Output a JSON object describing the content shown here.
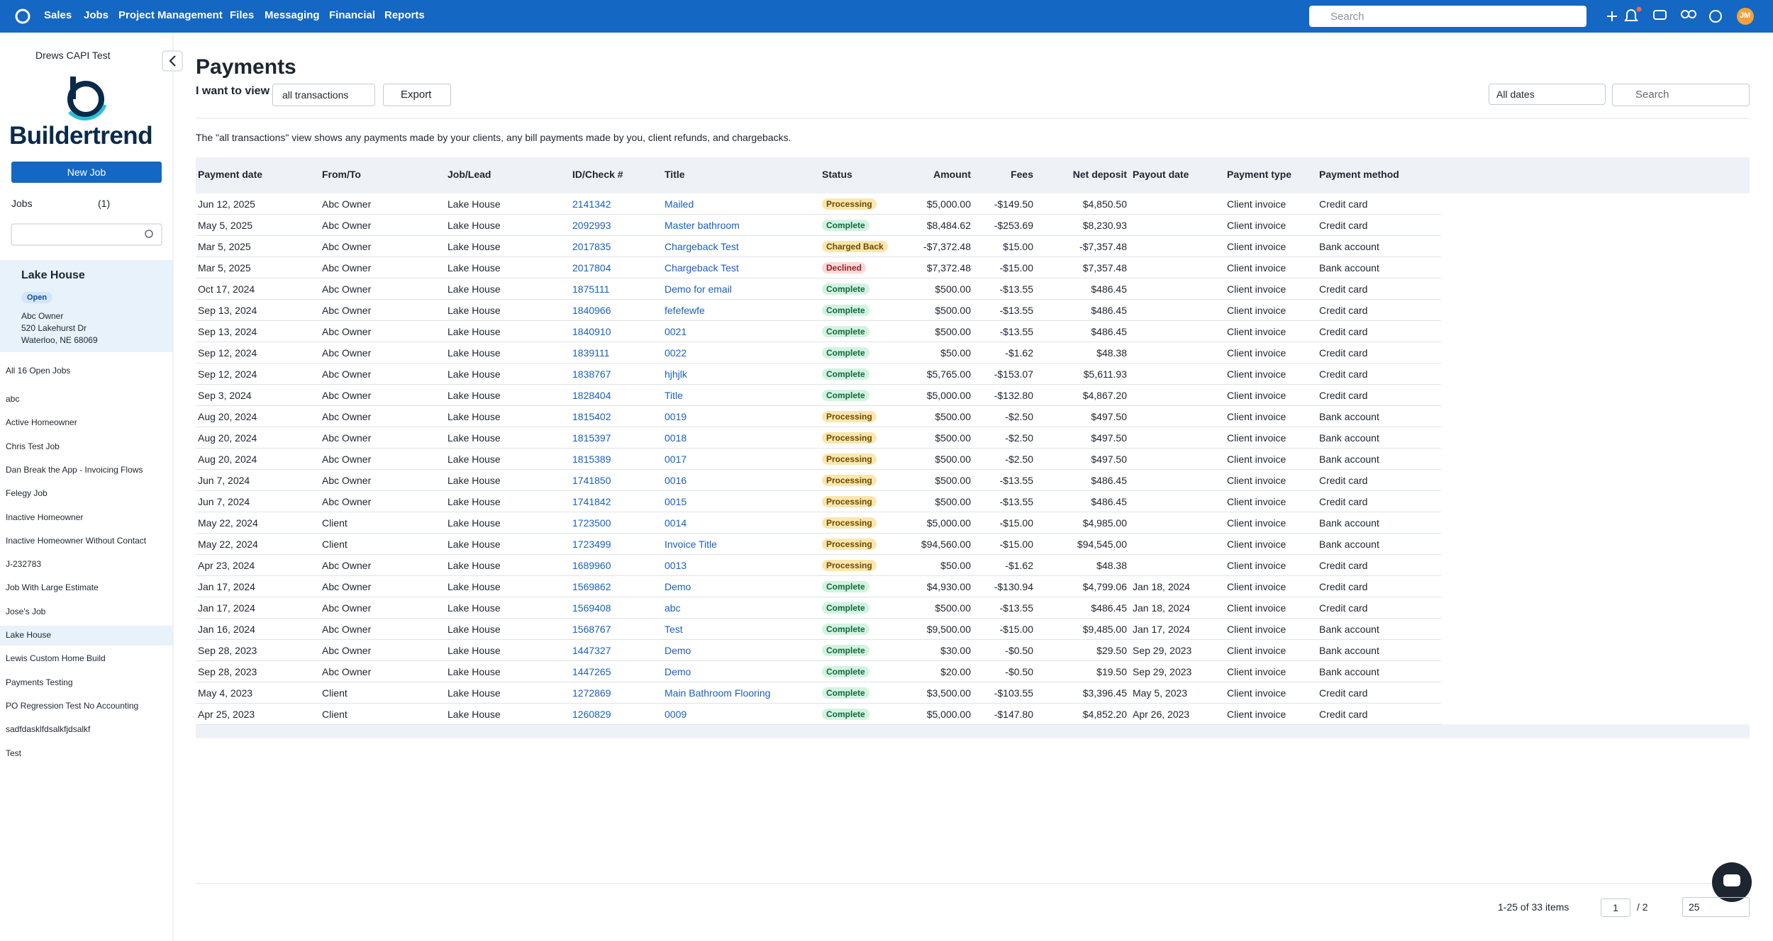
{
  "nav": {
    "items": [
      "Sales",
      "Jobs",
      "Project Management",
      "Files",
      "Messaging",
      "Financial",
      "Reports"
    ],
    "search": "Search",
    "avatar": "JM"
  },
  "sidebar": {
    "account": "Drews CAPI Test",
    "brand": "Buildertrend",
    "new_job": "New Job",
    "jobs_filter": "Jobs",
    "filter_count": "(1)",
    "selected_job": {
      "name": "Lake House",
      "status": "Open",
      "owner": "Abc Owner",
      "street": "520 Lakehurst Dr",
      "city": "Waterloo, NE 68069"
    },
    "all_open": "All 16 Open Jobs",
    "jobs": [
      "abc",
      "Active Homeowner",
      "Chris Test Job",
      "Dan Break the App - Invoicing Flows",
      "Felegy Job",
      "Inactive Homeowner",
      "Inactive Homeowner Without Contact",
      "J-232783",
      "Job With Large Estimate",
      "Jose's Job",
      "Lake House",
      "Lewis Custom Home Build",
      "Payments Testing",
      "PO Regression Test No Accounting",
      "sadfdasklfdsalkfjdsalkf",
      "Test"
    ]
  },
  "page": {
    "title": "Payments",
    "view_label": "I want to view",
    "view": "all transactions",
    "export": "Export",
    "date_filter": "All dates",
    "search": "Search",
    "description": "The \"all transactions\" view shows any payments made by your clients, any bill payments made by you, client refunds, and chargebacks."
  },
  "table": {
    "columns": [
      "Payment date",
      "From/To",
      "Job/Lead",
      "ID/Check #",
      "Title",
      "Status",
      "Amount",
      "Fees",
      "Net deposit",
      "Payout date",
      "Payment type",
      "Payment method"
    ],
    "status_styles": {
      "Processing": [
        "#fbe6ae",
        "#6b4a00"
      ],
      "Complete": [
        "#d3f3e2",
        "#14663a"
      ],
      "Charged Back": [
        "#fbe6ae",
        "#6b4a00"
      ],
      "Declined": [
        "#fbd9d9",
        "#9b1c1c"
      ]
    },
    "rows": [
      [
        "Jun 12, 2025",
        "Abc Owner",
        "Lake House",
        "2141342",
        "Mailed",
        "Processing",
        "$5,000.00",
        "-$149.50",
        "$4,850.50",
        null,
        "Client invoice",
        "Credit card"
      ],
      [
        "May 5, 2025",
        "Abc Owner",
        "Lake House",
        "2092993",
        "Master bathroom",
        "Complete",
        "$8,484.62",
        "-$253.69",
        "$8,230.93",
        null,
        "Client invoice",
        "Credit card"
      ],
      [
        "Mar 5, 2025",
        "Abc Owner",
        "Lake House",
        "2017835",
        "Chargeback Test",
        "Charged Back",
        "-$7,372.48",
        "$15.00",
        "-$7,357.48",
        null,
        "Client invoice",
        "Bank account"
      ],
      [
        "Mar 5, 2025",
        "Abc Owner",
        "Lake House",
        "2017804",
        "Chargeback Test",
        "Declined",
        "$7,372.48",
        "-$15.00",
        "$7,357.48",
        null,
        "Client invoice",
        "Bank account"
      ],
      [
        "Oct 17, 2024",
        "Abc Owner",
        "Lake House",
        "1875111",
        "Demo for email",
        "Complete",
        "$500.00",
        "-$13.55",
        "$486.45",
        null,
        "Client invoice",
        "Credit card"
      ],
      [
        "Sep 13, 2024",
        "Abc Owner",
        "Lake House",
        "1840966",
        "fefefewfe",
        "Complete",
        "$500.00",
        "-$13.55",
        "$486.45",
        null,
        "Client invoice",
        "Credit card"
      ],
      [
        "Sep 13, 2024",
        "Abc Owner",
        "Lake House",
        "1840910",
        "0021",
        "Complete",
        "$500.00",
        "-$13.55",
        "$486.45",
        null,
        "Client invoice",
        "Credit card"
      ],
      [
        "Sep 12, 2024",
        "Abc Owner",
        "Lake House",
        "1839111",
        "0022",
        "Complete",
        "$50.00",
        "-$1.62",
        "$48.38",
        null,
        "Client invoice",
        "Credit card"
      ],
      [
        "Sep 12, 2024",
        "Abc Owner",
        "Lake House",
        "1838767",
        "hjhjlk",
        "Complete",
        "$5,765.00",
        "-$153.07",
        "$5,611.93",
        null,
        "Client invoice",
        "Credit card"
      ],
      [
        "Sep 3, 2024",
        "Abc Owner",
        "Lake House",
        "1828404",
        "Title",
        "Complete",
        "$5,000.00",
        "-$132.80",
        "$4,867.20",
        null,
        "Client invoice",
        "Credit card"
      ],
      [
        "Aug 20, 2024",
        "Abc Owner",
        "Lake House",
        "1815402",
        "0019",
        "Processing",
        "$500.00",
        "-$2.50",
        "$497.50",
        null,
        "Client invoice",
        "Bank account"
      ],
      [
        "Aug 20, 2024",
        "Abc Owner",
        "Lake House",
        "1815397",
        "0018",
        "Processing",
        "$500.00",
        "-$2.50",
        "$497.50",
        null,
        "Client invoice",
        "Bank account"
      ],
      [
        "Aug 20, 2024",
        "Abc Owner",
        "Lake House",
        "1815389",
        "0017",
        "Processing",
        "$500.00",
        "-$2.50",
        "$497.50",
        null,
        "Client invoice",
        "Bank account"
      ],
      [
        "Jun 7, 2024",
        "Abc Owner",
        "Lake House",
        "1741850",
        "0016",
        "Processing",
        "$500.00",
        "-$13.55",
        "$486.45",
        null,
        "Client invoice",
        "Credit card"
      ],
      [
        "Jun 7, 2024",
        "Abc Owner",
        "Lake House",
        "1741842",
        "0015",
        "Processing",
        "$500.00",
        "-$13.55",
        "$486.45",
        null,
        "Client invoice",
        "Credit card"
      ],
      [
        "May 22, 2024",
        "Client",
        "Lake House",
        "1723500",
        "0014",
        "Processing",
        "$5,000.00",
        "-$15.00",
        "$4,985.00",
        null,
        "Client invoice",
        "Bank account"
      ],
      [
        "May 22, 2024",
        "Client",
        "Lake House",
        "1723499",
        "Invoice Title",
        "Processing",
        "$94,560.00",
        "-$15.00",
        "$94,545.00",
        null,
        "Client invoice",
        "Bank account"
      ],
      [
        "Apr 23, 2024",
        "Abc Owner",
        "Lake House",
        "1689960",
        "0013",
        "Processing",
        "$50.00",
        "-$1.62",
        "$48.38",
        null,
        "Client invoice",
        "Credit card"
      ],
      [
        "Jan 17, 2024",
        "Abc Owner",
        "Lake House",
        "1569862",
        "Demo",
        "Complete",
        "$4,930.00",
        "-$130.94",
        "$4,799.06",
        "Jan 18, 2024",
        "Client invoice",
        "Credit card"
      ],
      [
        "Jan 17, 2024",
        "Abc Owner",
        "Lake House",
        "1569408",
        "abc",
        "Complete",
        "$500.00",
        "-$13.55",
        "$486.45",
        "Jan 18, 2024",
        "Client invoice",
        "Credit card"
      ],
      [
        "Jan 16, 2024",
        "Abc Owner",
        "Lake House",
        "1568767",
        "Test",
        "Complete",
        "$9,500.00",
        "-$15.00",
        "$9,485.00",
        "Jan 17, 2024",
        "Client invoice",
        "Bank account"
      ],
      [
        "Sep 28, 2023",
        "Abc Owner",
        "Lake House",
        "1447327",
        "Demo",
        "Complete",
        "$30.00",
        "-$0.50",
        "$29.50",
        "Sep 29, 2023",
        "Client invoice",
        "Bank account"
      ],
      [
        "Sep 28, 2023",
        "Abc Owner",
        "Lake House",
        "1447265",
        "Demo",
        "Complete",
        "$20.00",
        "-$0.50",
        "$19.50",
        "Sep 29, 2023",
        "Client invoice",
        "Bank account"
      ],
      [
        "May 4, 2023",
        "Client",
        "Lake House",
        "1272869",
        "Main Bathroom Flooring",
        "Complete",
        "$3,500.00",
        "-$103.55",
        "$3,396.45",
        "May 5, 2023",
        "Client invoice",
        "Credit card"
      ],
      [
        "Apr 25, 2023",
        "Client",
        "Lake House",
        "1260829",
        "0009",
        "Complete",
        "$5,000.00",
        "-$147.80",
        "$4,852.20",
        "Apr 26, 2023",
        "Client invoice",
        "Credit card"
      ]
    ]
  },
  "pagination": {
    "summary": "1-25 of 33 items",
    "page": "1",
    "of": "/ 2",
    "page_size": "25"
  }
}
